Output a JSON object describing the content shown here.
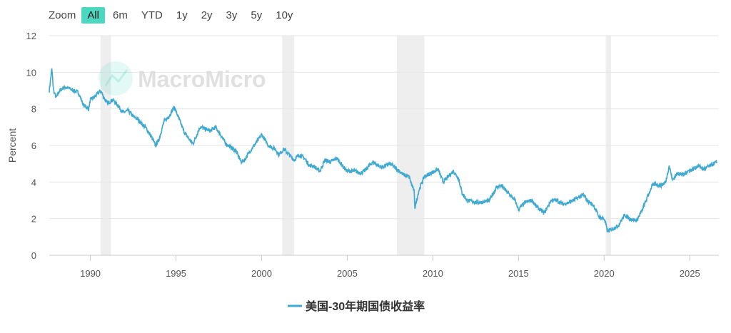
{
  "zoom": {
    "label": "Zoom",
    "options": [
      "All",
      "6m",
      "YTD",
      "1y",
      "2y",
      "3y",
      "5y",
      "10y"
    ],
    "selected": "All"
  },
  "watermark": "MacroMicro",
  "colors": {
    "line": "#3fa9d0",
    "recession": "#eeeeee",
    "grid": "#e6e6e6",
    "active_button": "#4cd7c0"
  },
  "chart_data": {
    "type": "line",
    "title": "",
    "xlabel": "",
    "ylabel": "Percent",
    "ylim": [
      0,
      12
    ],
    "yticks": [
      0,
      2,
      4,
      6,
      8,
      10,
      12
    ],
    "xlim": [
      1987.6,
      2026.7
    ],
    "xticks": [
      1990,
      1995,
      2000,
      2005,
      2010,
      2015,
      2020,
      2025
    ],
    "grid": true,
    "legend_position": "bottom-center",
    "recession_bands": [
      [
        1990.6,
        1991.2
      ],
      [
        2001.2,
        2001.9
      ],
      [
        2007.9,
        2009.5
      ],
      [
        2020.1,
        2020.4
      ]
    ],
    "series": [
      {
        "name": "美国-30年期国债收益率",
        "color": "#3fa9d0",
        "x": [
          1987.6,
          1987.75,
          1987.85,
          1988.0,
          1988.2,
          1988.5,
          1988.8,
          1989.0,
          1989.3,
          1989.6,
          1989.9,
          1990.0,
          1990.3,
          1990.6,
          1990.8,
          1991.0,
          1991.3,
          1991.6,
          1991.9,
          1992.2,
          1992.5,
          1992.8,
          1993.0,
          1993.3,
          1993.6,
          1993.8,
          1994.0,
          1994.3,
          1994.6,
          1994.9,
          1995.2,
          1995.5,
          1995.8,
          1996.0,
          1996.4,
          1996.7,
          1997.0,
          1997.3,
          1997.6,
          1997.9,
          1998.2,
          1998.5,
          1998.8,
          1999.0,
          1999.4,
          1999.8,
          2000.0,
          2000.4,
          2000.8,
          2001.0,
          2001.3,
          2001.6,
          2001.9,
          2002.2,
          2002.5,
          2002.8,
          2003.0,
          2003.4,
          2003.7,
          2004.0,
          2004.4,
          2004.8,
          2005.0,
          2005.4,
          2005.8,
          2006.0,
          2006.5,
          2007.0,
          2007.5,
          2007.9,
          2008.3,
          2008.6,
          2008.9,
          2008.95,
          2009.2,
          2009.5,
          2009.9,
          2010.3,
          2010.6,
          2010.9,
          2011.2,
          2011.5,
          2011.7,
          2012.0,
          2012.5,
          2012.9,
          2013.3,
          2013.7,
          2014.0,
          2014.4,
          2014.8,
          2015.0,
          2015.4,
          2015.8,
          2016.0,
          2016.5,
          2016.9,
          2017.2,
          2017.6,
          2018.0,
          2018.4,
          2018.8,
          2019.0,
          2019.4,
          2019.7,
          2020.0,
          2020.2,
          2020.4,
          2020.8,
          2021.2,
          2021.5,
          2021.9,
          2022.2,
          2022.5,
          2022.8,
          2023.0,
          2023.3,
          2023.6,
          2023.8,
          2024.0,
          2024.3,
          2024.6,
          2024.9,
          2025.2,
          2025.5,
          2025.8,
          2026.2,
          2026.6
        ],
        "values": [
          9.0,
          10.2,
          9.0,
          8.6,
          9.0,
          9.2,
          9.1,
          9.0,
          8.9,
          8.2,
          8.0,
          8.5,
          8.7,
          9.0,
          8.6,
          8.3,
          8.5,
          8.2,
          7.8,
          7.9,
          7.6,
          7.4,
          7.2,
          6.9,
          6.4,
          6.0,
          6.3,
          7.3,
          7.6,
          8.1,
          7.4,
          6.7,
          6.3,
          6.1,
          7.0,
          6.9,
          6.8,
          7.0,
          6.6,
          6.1,
          5.9,
          5.7,
          5.1,
          5.2,
          5.8,
          6.3,
          6.6,
          6.0,
          5.8,
          5.5,
          5.8,
          5.5,
          5.2,
          5.5,
          5.3,
          4.9,
          4.9,
          4.6,
          5.2,
          5.1,
          5.3,
          4.8,
          4.6,
          4.6,
          4.5,
          4.6,
          5.1,
          4.8,
          5.0,
          4.7,
          4.4,
          4.3,
          3.5,
          2.6,
          3.6,
          4.3,
          4.5,
          4.7,
          4.0,
          4.3,
          4.6,
          4.2,
          3.4,
          3.0,
          2.9,
          2.9,
          3.0,
          3.7,
          3.8,
          3.4,
          3.0,
          2.5,
          2.9,
          3.0,
          2.7,
          2.3,
          3.0,
          3.0,
          2.8,
          2.9,
          3.1,
          3.3,
          3.0,
          2.7,
          2.1,
          2.0,
          1.3,
          1.4,
          1.6,
          2.2,
          2.0,
          1.9,
          2.4,
          3.1,
          3.8,
          3.9,
          3.8,
          4.0,
          4.9,
          4.1,
          4.5,
          4.4,
          4.6,
          4.7,
          4.9,
          4.7,
          4.9,
          5.1
        ]
      }
    ]
  }
}
